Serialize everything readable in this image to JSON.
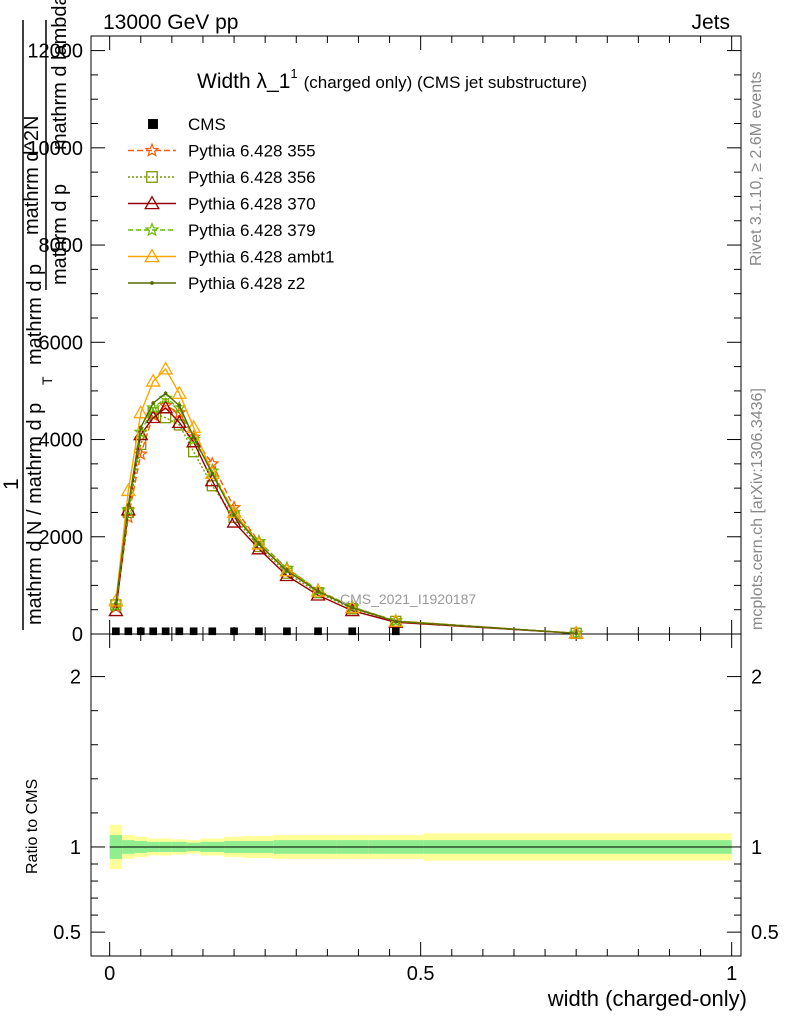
{
  "header": {
    "energy_label": "13000 GeV pp",
    "category_label": "Jets",
    "watermark": "CMS_2021_I1920187",
    "side_text_top": "Rivet 3.1.10, ≥ 2.6M events",
    "side_text_bottom": "mcplots.cern.ch [arXiv:1306.3436]"
  },
  "chart_data": {
    "type": "line",
    "title_main": "Width λ_1",
    "title_sup": "1",
    "title_sub": "(charged only) (CMS jet substructure)",
    "ylabel_numerator": "1",
    "ylabel_denominator": "mathrm d N / mathrm d p",
    "ylabel_sub": "T",
    "ylabel_mid": "mathrm d p",
    "ylabel_frac": "mathrm d^2N",
    "ylabel_frac_den": "mathrm d p",
    "ylabel_frac_den2": "mathrm d lambda",
    "xlabel": "width (charged-only)",
    "ratio_ylabel": "Ratio to CMS",
    "xlim": [
      -0.03,
      1.015
    ],
    "ylim": [
      0,
      12300
    ],
    "ratio_ylim": [
      0.36,
      2.25
    ],
    "y_ticks": [
      0,
      2000,
      4000,
      6000,
      8000,
      10000,
      12000
    ],
    "y_tick_labels": [
      "0",
      "2000",
      "4000",
      "6000",
      "8000",
      "10000",
      "12000"
    ],
    "x_ticks": [
      0,
      0.5,
      1
    ],
    "x_tick_labels": [
      "0",
      "0.5",
      "1"
    ],
    "ratio_ticks": [
      0.5,
      1,
      2
    ],
    "ratio_tick_labels": [
      "0.5",
      "1",
      "2"
    ],
    "cms": {
      "name": "CMS",
      "x": [
        0.01,
        0.03,
        0.05,
        0.07,
        0.09,
        0.112,
        0.135,
        0.165,
        0.2,
        0.24,
        0.285,
        0.335,
        0.39,
        0.46
      ],
      "values": [
        15,
        15,
        15,
        15,
        15,
        15,
        15,
        15,
        15,
        15,
        15,
        15,
        15,
        15
      ]
    },
    "x": [
      0.01,
      0.03,
      0.05,
      0.07,
      0.09,
      0.112,
      0.135,
      0.165,
      0.2,
      0.24,
      0.285,
      0.335,
      0.39,
      0.46,
      0.75
    ],
    "series": [
      {
        "name": "Pythia 6.428 355",
        "color": "#ff5a00",
        "marker": "star",
        "dash": "6,3",
        "values": [
          550,
          2400,
          3700,
          4500,
          4700,
          4550,
          4050,
          3500,
          2600,
          1900,
          1350,
          900,
          550,
          270,
          15
        ]
      },
      {
        "name": "Pythia 6.428 356",
        "color": "#7a9a00",
        "marker": "square",
        "dash": "2,2",
        "values": [
          600,
          2500,
          3900,
          4550,
          4450,
          4300,
          3750,
          3050,
          2400,
          1800,
          1250,
          850,
          520,
          260,
          15
        ]
      },
      {
        "name": "Pythia 6.428 370",
        "color": "#990000",
        "marker": "triangle",
        "dash": "",
        "values": [
          480,
          2550,
          4100,
          4450,
          4650,
          4350,
          3950,
          3150,
          2300,
          1750,
          1200,
          800,
          480,
          240,
          15
        ]
      },
      {
        "name": "Pythia 6.428 379",
        "color": "#66bb00",
        "marker": "star",
        "dash": "5,3",
        "values": [
          580,
          2550,
          4150,
          4650,
          4850,
          4650,
          4000,
          3350,
          2500,
          1900,
          1350,
          900,
          560,
          270,
          15
        ]
      },
      {
        "name": "Pythia 6.428 ambt1",
        "color": "#ffa500",
        "marker": "triangle",
        "dash": "",
        "values": [
          680,
          2950,
          4550,
          5200,
          5450,
          4950,
          4250,
          3300,
          2500,
          1850,
          1300,
          880,
          540,
          260,
          15
        ]
      },
      {
        "name": "Pythia 6.428 z2",
        "color": "#556b00",
        "marker": "dot",
        "dash": "",
        "values": [
          620,
          2650,
          4250,
          4750,
          4950,
          4700,
          4050,
          3300,
          2450,
          1850,
          1300,
          880,
          540,
          260,
          15
        ]
      }
    ],
    "ratio_bands": {
      "edges": [
        0,
        0.02,
        0.04,
        0.06,
        0.08,
        0.1,
        0.124,
        0.146,
        0.184,
        0.216,
        0.264,
        0.306,
        0.364,
        0.416,
        0.504,
        1.0
      ],
      "green_half_widths": [
        0.07,
        0.04,
        0.035,
        0.03,
        0.03,
        0.03,
        0.025,
        0.03,
        0.035,
        0.035,
        0.04,
        0.04,
        0.04,
        0.04,
        0.04
      ],
      "yellow_half_widths": [
        0.13,
        0.07,
        0.06,
        0.05,
        0.05,
        0.045,
        0.04,
        0.05,
        0.06,
        0.065,
        0.07,
        0.07,
        0.07,
        0.07,
        0.08
      ]
    }
  }
}
